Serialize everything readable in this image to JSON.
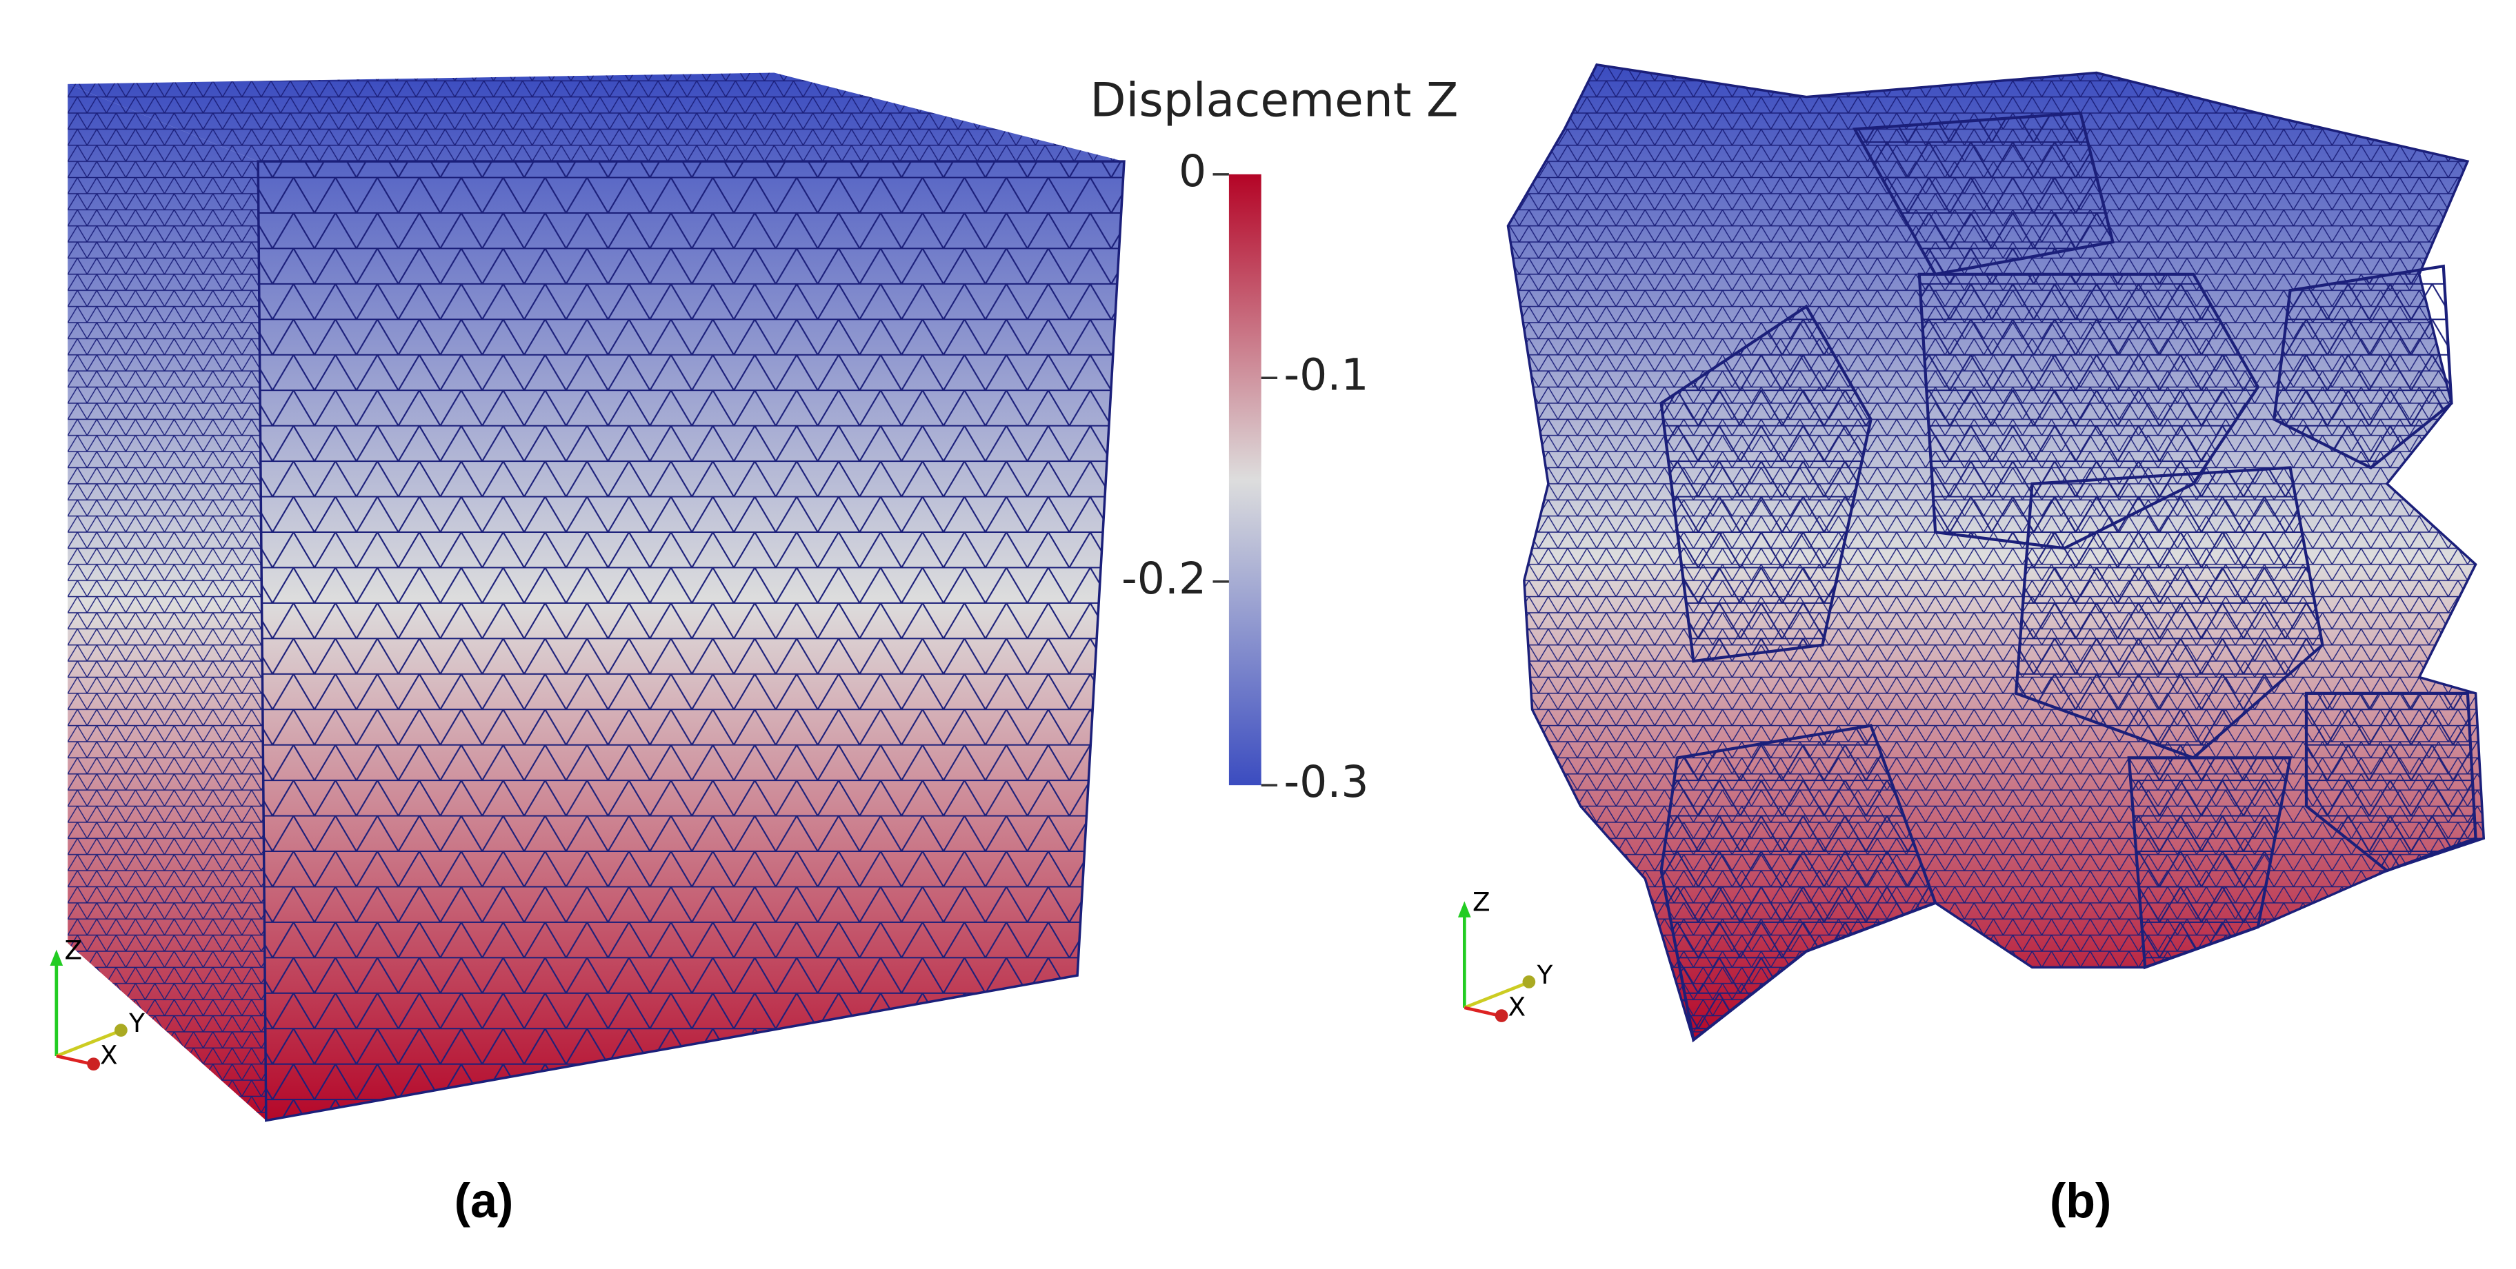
{
  "panels": [
    {
      "label": "(a)"
    },
    {
      "label": "(b)"
    }
  ],
  "colorbar": {
    "title": "Displacement Z",
    "range": [
      0,
      -0.3
    ],
    "ticks": [
      0,
      -0.1,
      -0.2,
      -0.3
    ],
    "colors": [
      "#b40426",
      "#dddddd",
      "#3b4cc0"
    ]
  },
  "axes_triad": {
    "labels": [
      "Z",
      "Y",
      "X"
    ]
  }
}
